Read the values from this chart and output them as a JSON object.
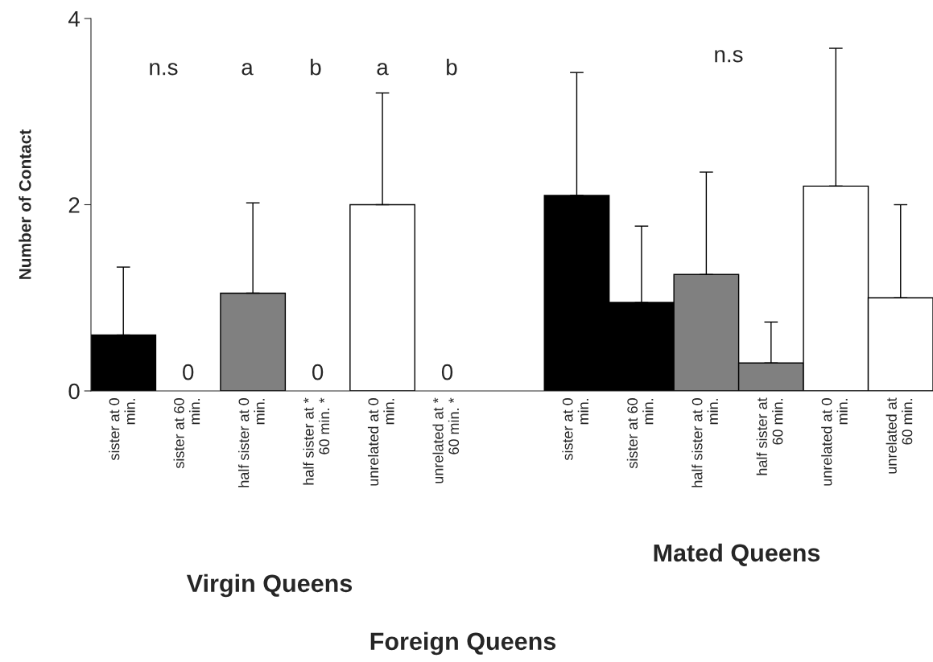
{
  "chart_data": {
    "type": "bar",
    "categories": [
      "sister at 0\nmin.",
      "sister at 60\nmin.",
      "half sister at 0\nmin.",
      "half sister at *\n60 min. *",
      "unrelated at 0\nmin.",
      "unrelated at *\n60 min. *",
      null,
      "sister at 0\nmin.",
      "sister at 60\nmin.",
      "half sister at 0\nmin.",
      "half sister at\n60 min.",
      "unrelated at 0\nmin.",
      "unrelated at\n60 min."
    ],
    "values": [
      0.6,
      0,
      1.05,
      0,
      2.0,
      0,
      null,
      2.1,
      0.95,
      1.25,
      0.3,
      2.2,
      1.0
    ],
    "colors": [
      "#000000",
      "#000000",
      "#808080",
      "#808080",
      "#ffffff",
      "#ffffff",
      null,
      "#000000",
      "#000000",
      "#808080",
      "#808080",
      "#ffffff",
      "#ffffff"
    ],
    "errors": [
      [
        0.6,
        1.33
      ],
      null,
      [
        1.05,
        2.02
      ],
      null,
      [
        2.0,
        3.2
      ],
      null,
      null,
      [
        2.1,
        3.42
      ],
      [
        0.95,
        1.77
      ],
      [
        1.25,
        2.35
      ],
      [
        0.3,
        0.74
      ],
      [
        2.2,
        3.68
      ],
      [
        1.0,
        2.0
      ]
    ],
    "value_labels": [
      null,
      "0",
      null,
      "0",
      null,
      "0",
      null,
      null,
      null,
      null,
      null,
      null,
      null
    ],
    "ylabel": "Number of Contact",
    "ylim": [
      0,
      4
    ],
    "yticks": [
      0,
      2,
      4
    ],
    "grid": false,
    "legend": false,
    "annotations": [
      "n.s",
      "a",
      "b",
      "a",
      "b",
      "n.s",
      "Virgin Queens",
      "Mated Queens",
      "Foreign Queens"
    ]
  }
}
